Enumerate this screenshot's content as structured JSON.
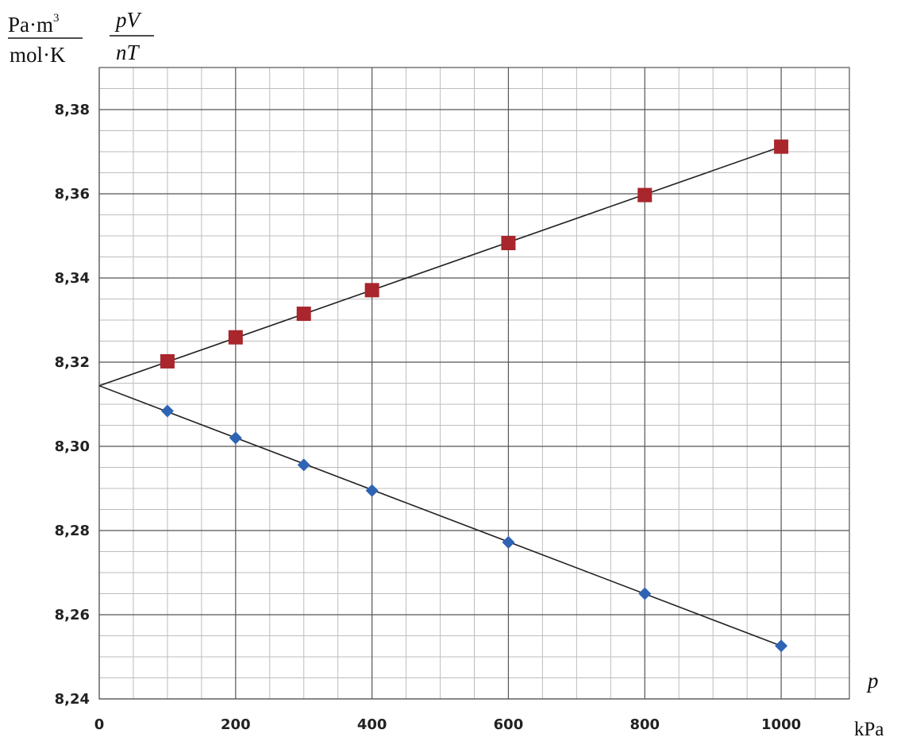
{
  "chart_data": {
    "type": "scatter",
    "ylabel": "pV/nT",
    "ylabel_numerator": "pV",
    "ylabel_denominator": "nT",
    "yunit_numerator": "Pa·m",
    "yunit_power": "3",
    "yunit_denominator": "mol·K",
    "xlabel": "p",
    "xunit": "kPa",
    "xlim": [
      0,
      1100
    ],
    "ylim": [
      8.24,
      8.39
    ],
    "x_ticks": [
      "0",
      "200",
      "400",
      "600",
      "800",
      "1000"
    ],
    "y_ticks": [
      "8,24",
      "8,26",
      "8,28",
      "8,30",
      "8,32",
      "8,34",
      "8,36",
      "8,38"
    ],
    "grid": true,
    "series": [
      {
        "marker": "square",
        "color": "#a8262c",
        "x": [
          100,
          200,
          300,
          400,
          600,
          800,
          1000
        ],
        "y": [
          8.3202,
          8.3259,
          8.3315,
          8.3371,
          8.3483,
          8.3597,
          8.3712
        ]
      },
      {
        "marker": "diamond",
        "color": "#2f64b5",
        "x": [
          100,
          200,
          300,
          400,
          600,
          800,
          1000
        ],
        "y": [
          8.3084,
          8.302,
          8.2956,
          8.2895,
          8.2772,
          8.265,
          8.2526
        ]
      }
    ],
    "fit_lines": [
      {
        "x": [
          0,
          1000
        ],
        "y": [
          8.3144,
          8.3712
        ],
        "color": "#222222"
      },
      {
        "x": [
          0,
          1000
        ],
        "y": [
          8.3144,
          8.2526
        ],
        "color": "#222222"
      }
    ]
  }
}
